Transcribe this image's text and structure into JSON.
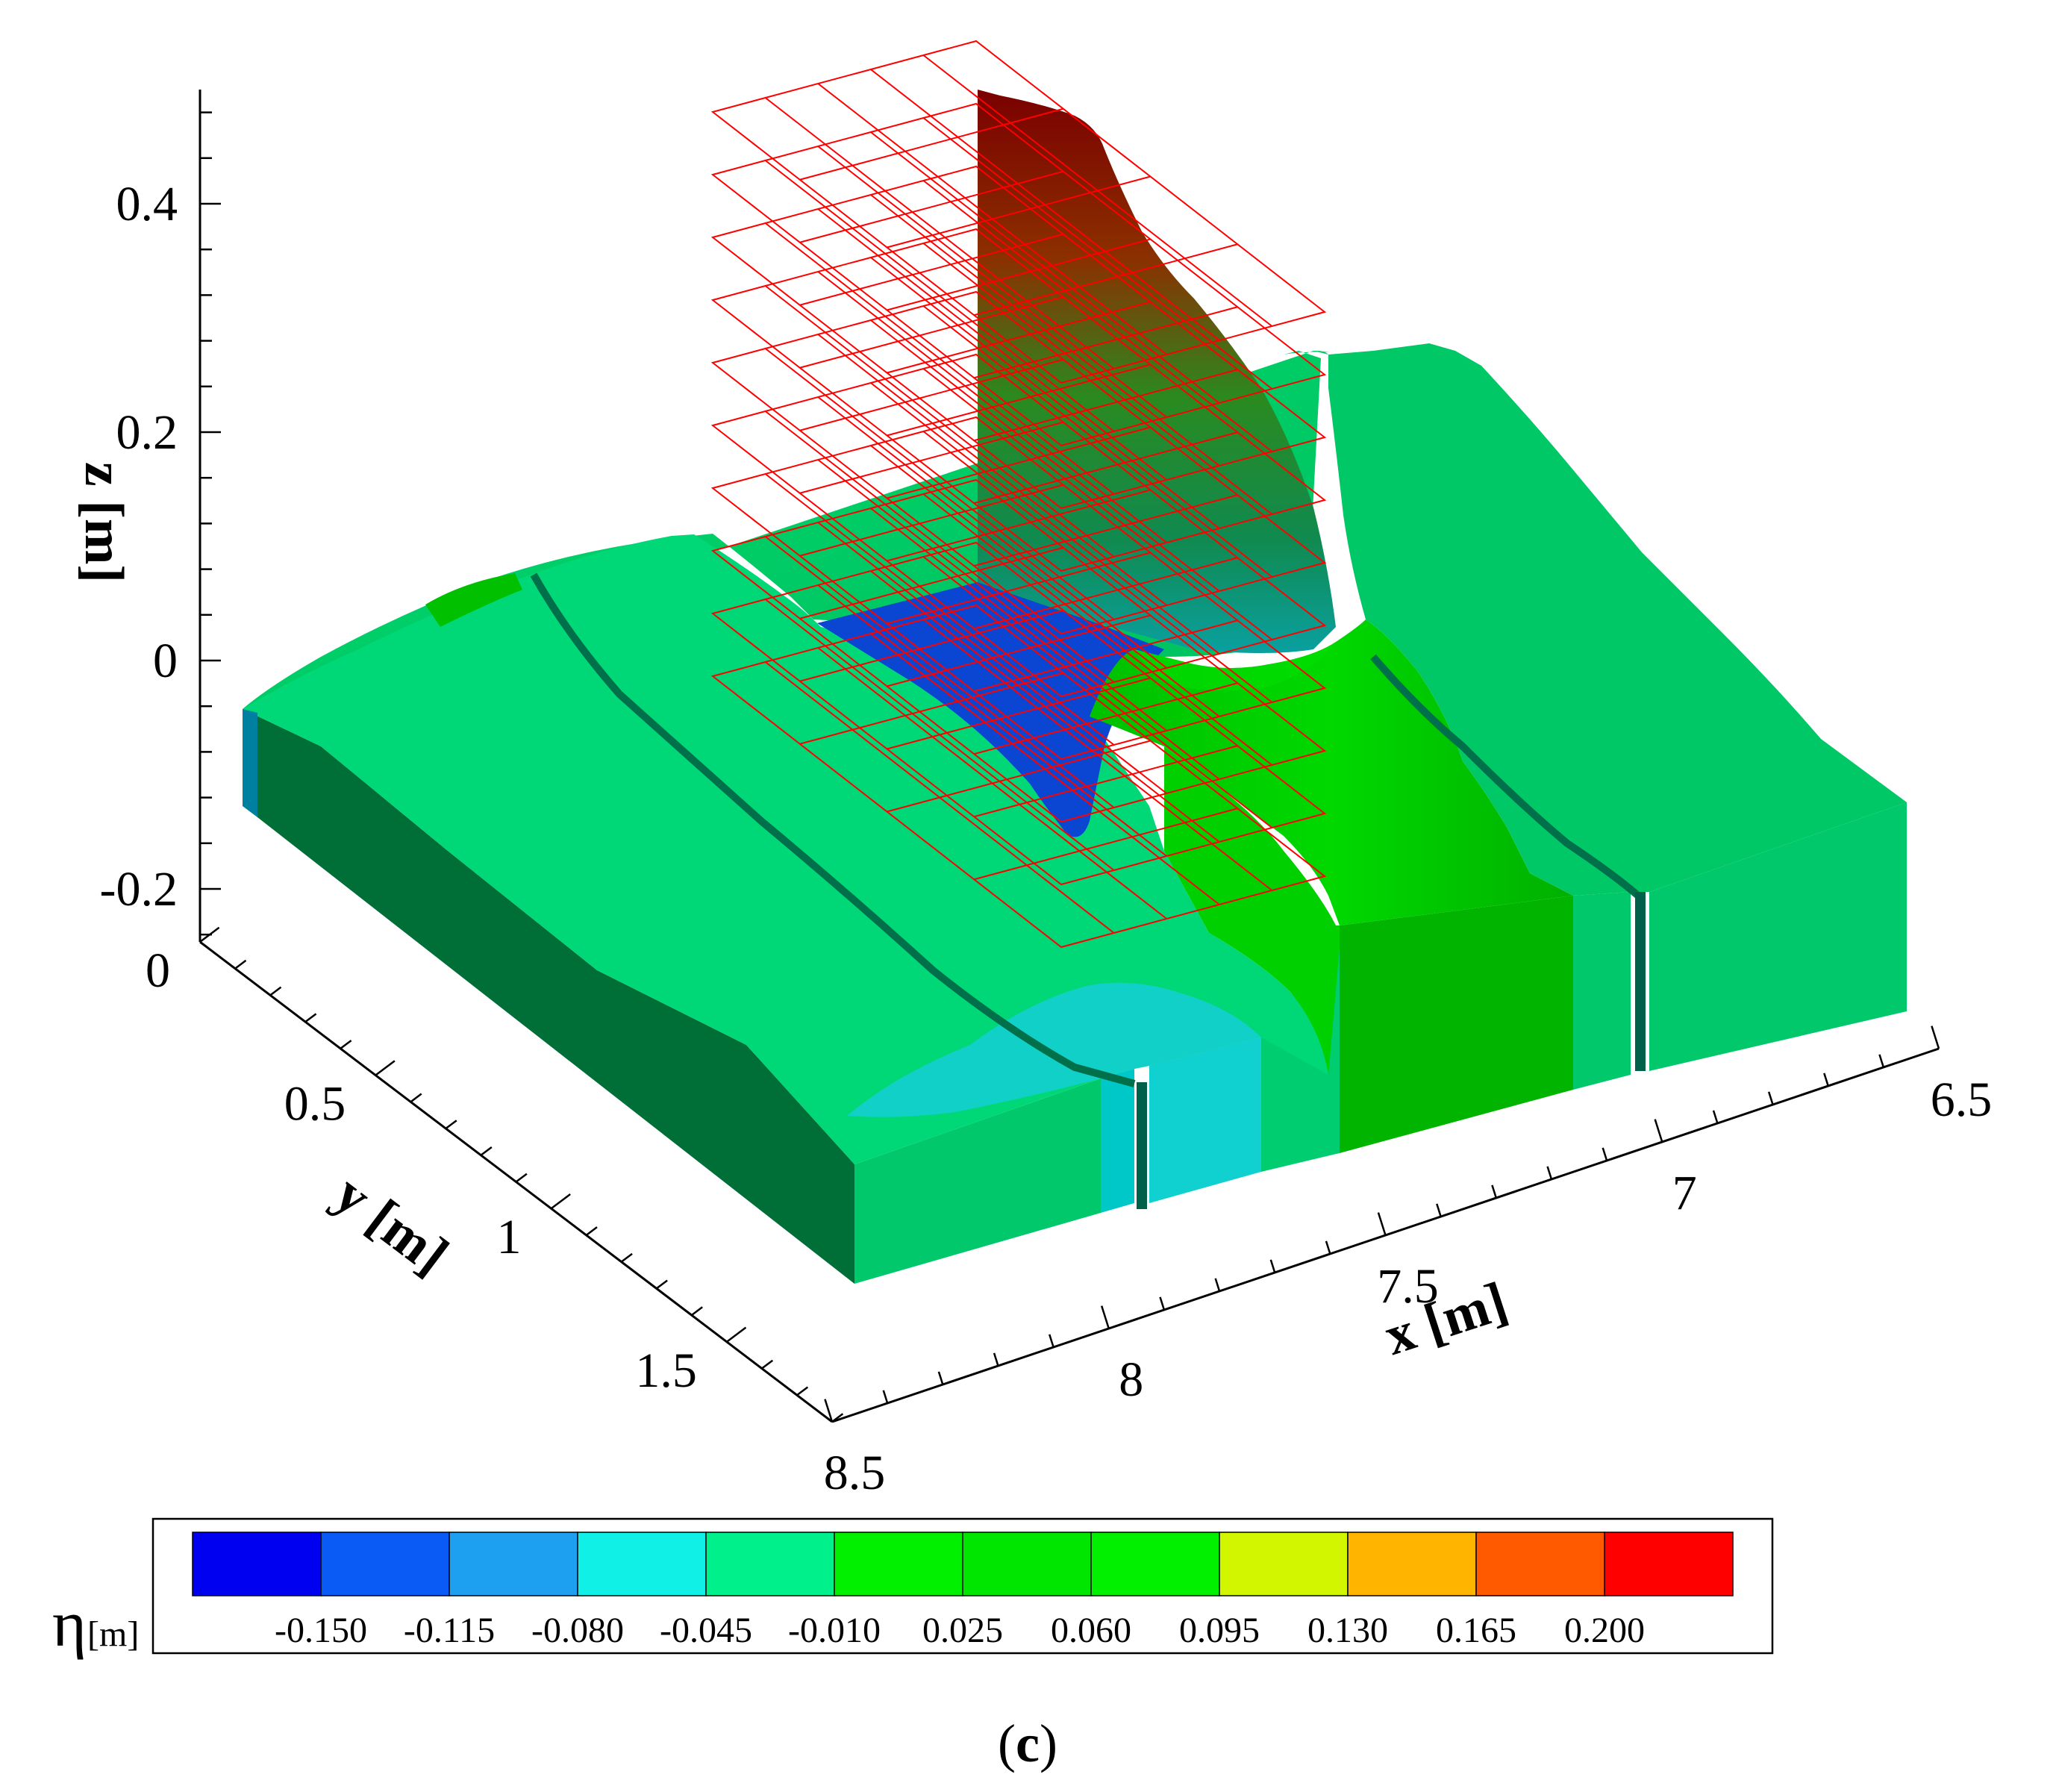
{
  "chart_data": {
    "type": "surface3d",
    "panel_label": {
      "open": "(",
      "letter": "c",
      "close": ")"
    },
    "axes": {
      "z": {
        "label": "z [m]",
        "ticks": [
          "-0.2",
          "0",
          "0.2",
          "0.4"
        ],
        "range": [
          -0.24,
          0.48
        ]
      },
      "y": {
        "label": "y [m]",
        "ticks": [
          "0",
          "0.5",
          "1",
          "1.5"
        ],
        "range": [
          0,
          1.8
        ]
      },
      "x": {
        "label": "x [m]",
        "ticks": [
          "6.5",
          "7",
          "7.5",
          "8",
          "8.5"
        ],
        "range": [
          6.5,
          8.5
        ]
      }
    },
    "colorbar": {
      "variable": "η",
      "unit": "[m]",
      "levels": [
        "-0.150",
        "-0.115",
        "-0.080",
        "-0.045",
        "-0.010",
        "0.025",
        "0.060",
        "0.095",
        "0.130",
        "0.165",
        "0.200"
      ],
      "colors": [
        "#0000f0",
        "#0a5af5",
        "#1ea0f0",
        "#10f0e6",
        "#00f08c",
        "#00f000",
        "#00e600",
        "#00f000",
        "#d2f500",
        "#ffb400",
        "#ff5a00",
        "#ff0000"
      ]
    },
    "surface_colors": {
      "water_top": "#00d26e",
      "water_side": "#006e37",
      "water_front": "#00c86b",
      "channel_bottom": "#0a46d2",
      "wall": "#8b0000",
      "wall_mid": "#228b22",
      "wave": "#00c800",
      "trough": "#00c8c8",
      "grid_lines": "#ff0000"
    }
  }
}
